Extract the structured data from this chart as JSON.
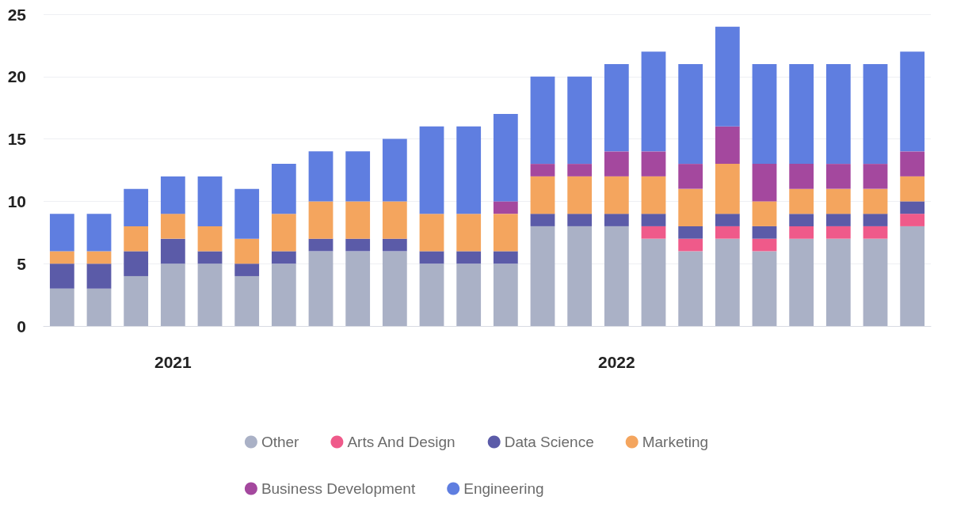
{
  "chart_data": {
    "type": "bar",
    "stacked": true,
    "categories": [
      null,
      null,
      null,
      "2021",
      null,
      null,
      null,
      null,
      null,
      null,
      null,
      null,
      null,
      null,
      null,
      "2022",
      null,
      null,
      null,
      null,
      null,
      null,
      null,
      null
    ],
    "ylim": [
      0,
      25
    ],
    "yticks": [
      0,
      5,
      10,
      15,
      20,
      25
    ],
    "grid": "y",
    "legend": "bottom",
    "series": [
      {
        "name": "Other",
        "color": "#aab1c6",
        "values": [
          3,
          3,
          4,
          5,
          5,
          4,
          5,
          6,
          6,
          6,
          5,
          5,
          5,
          8,
          8,
          8,
          7,
          6,
          7,
          6,
          7,
          7,
          7,
          8
        ]
      },
      {
        "name": "Arts And Design",
        "color": "#ef5a8a",
        "values": [
          0,
          0,
          0,
          0,
          0,
          0,
          0,
          0,
          0,
          0,
          0,
          0,
          0,
          0,
          0,
          0,
          1,
          1,
          1,
          1,
          1,
          1,
          1,
          1
        ]
      },
      {
        "name": "Data Science",
        "color": "#5b5ba8",
        "values": [
          2,
          2,
          2,
          2,
          1,
          1,
          1,
          1,
          1,
          1,
          1,
          1,
          1,
          1,
          1,
          1,
          1,
          1,
          1,
          1,
          1,
          1,
          1,
          1
        ]
      },
      {
        "name": "Marketing",
        "color": "#f4a55e",
        "values": [
          1,
          1,
          2,
          2,
          2,
          2,
          3,
          3,
          3,
          3,
          3,
          3,
          3,
          3,
          3,
          3,
          3,
          3,
          4,
          2,
          2,
          2,
          2,
          2
        ]
      },
      {
        "name": "Business Development",
        "color": "#a4489e",
        "values": [
          0,
          0,
          0,
          0,
          0,
          0,
          0,
          0,
          0,
          0,
          0,
          0,
          1,
          1,
          1,
          2,
          2,
          2,
          3,
          3,
          2,
          2,
          2,
          2
        ]
      },
      {
        "name": "Engineering",
        "color": "#5f7ee0",
        "values": [
          3,
          3,
          3,
          3,
          4,
          4,
          4,
          4,
          4,
          5,
          7,
          7,
          7,
          7,
          7,
          7,
          8,
          8,
          8,
          8,
          8,
          8,
          8,
          8
        ]
      }
    ]
  }
}
